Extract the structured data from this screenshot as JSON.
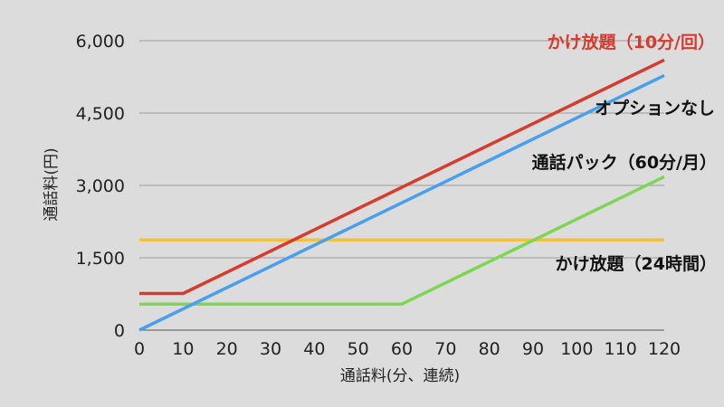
{
  "chart_data": {
    "type": "line",
    "xlabel": "通話料(分、連続)",
    "ylabel": "通話料(円)",
    "xlim": [
      0,
      120
    ],
    "ylim": [
      0,
      6000
    ],
    "x_ticks": [
      0,
      10,
      20,
      30,
      40,
      50,
      60,
      70,
      80,
      90,
      100,
      110,
      120
    ],
    "y_ticks": [
      0,
      1500,
      3000,
      4500,
      6000
    ],
    "x_tick_labels": [
      "0",
      "10",
      "20",
      "30",
      "40",
      "50",
      "60",
      "70",
      "80",
      "90",
      "100",
      "110",
      "120"
    ],
    "y_tick_labels": [
      "0",
      "1,500",
      "3,000",
      "4,500",
      "6,000"
    ],
    "grid": "horizontal",
    "series": [
      {
        "name": "かけ放題（10分/回）",
        "color": "#d63b2e",
        "label_color": "#d63b2e",
        "points": [
          [
            0,
            760
          ],
          [
            10,
            760
          ],
          [
            120,
            5600
          ]
        ]
      },
      {
        "name": "オプションなし",
        "color": "#4a9ef0",
        "label_color": "#111111",
        "points": [
          [
            0,
            0
          ],
          [
            120,
            5280
          ]
        ]
      },
      {
        "name": "通話パック（60分/月）",
        "color": "#7fd655",
        "label_color": "#111111",
        "points": [
          [
            0,
            540
          ],
          [
            60,
            540
          ],
          [
            120,
            3180
          ]
        ]
      },
      {
        "name": "かけ放題（24時間）",
        "color": "#f2c144",
        "label_color": "#111111",
        "points": [
          [
            0,
            1870
          ],
          [
            120,
            1870
          ]
        ]
      }
    ]
  }
}
